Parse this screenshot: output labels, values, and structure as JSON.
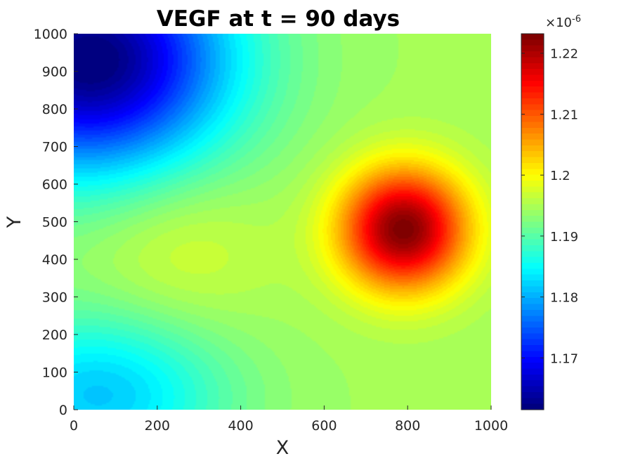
{
  "chart_data": {
    "type": "heatmap",
    "title": "VEGF at t = 90 days",
    "xlabel": "X",
    "ylabel": "Y",
    "xlim": [
      0,
      1000
    ],
    "ylim": [
      0,
      1000
    ],
    "xticks": [
      0,
      200,
      400,
      600,
      800,
      1000
    ],
    "yticks": [
      0,
      100,
      200,
      300,
      400,
      500,
      600,
      700,
      800,
      900,
      1000
    ],
    "colormap": "jet",
    "colorbar": {
      "min": 1.1615,
      "max": 1.2232,
      "ticks": [
        1.17,
        1.18,
        1.19,
        1.2,
        1.21,
        1.22
      ],
      "tick_labels": [
        "1.17",
        "1.18",
        "1.19",
        "1.2",
        "1.21",
        "1.22"
      ],
      "exponent_label": "×10",
      "exponent_power": "-6"
    },
    "field": {
      "base": 1.1945,
      "components": [
        {
          "kind": "peak",
          "x": 790,
          "y": 480,
          "sx": 150,
          "sy": 160,
          "amp": 0.0285
        },
        {
          "kind": "peak",
          "x": 40,
          "y": 930,
          "sx": 330,
          "sy": 300,
          "amp": -0.0335
        },
        {
          "kind": "peak",
          "x": 60,
          "y": 40,
          "sx": 300,
          "sy": 220,
          "amp": -0.013
        },
        {
          "kind": "peak",
          "x": 250,
          "y": 430,
          "sx": 220,
          "sy": 220,
          "amp": 0.0035
        }
      ]
    }
  }
}
